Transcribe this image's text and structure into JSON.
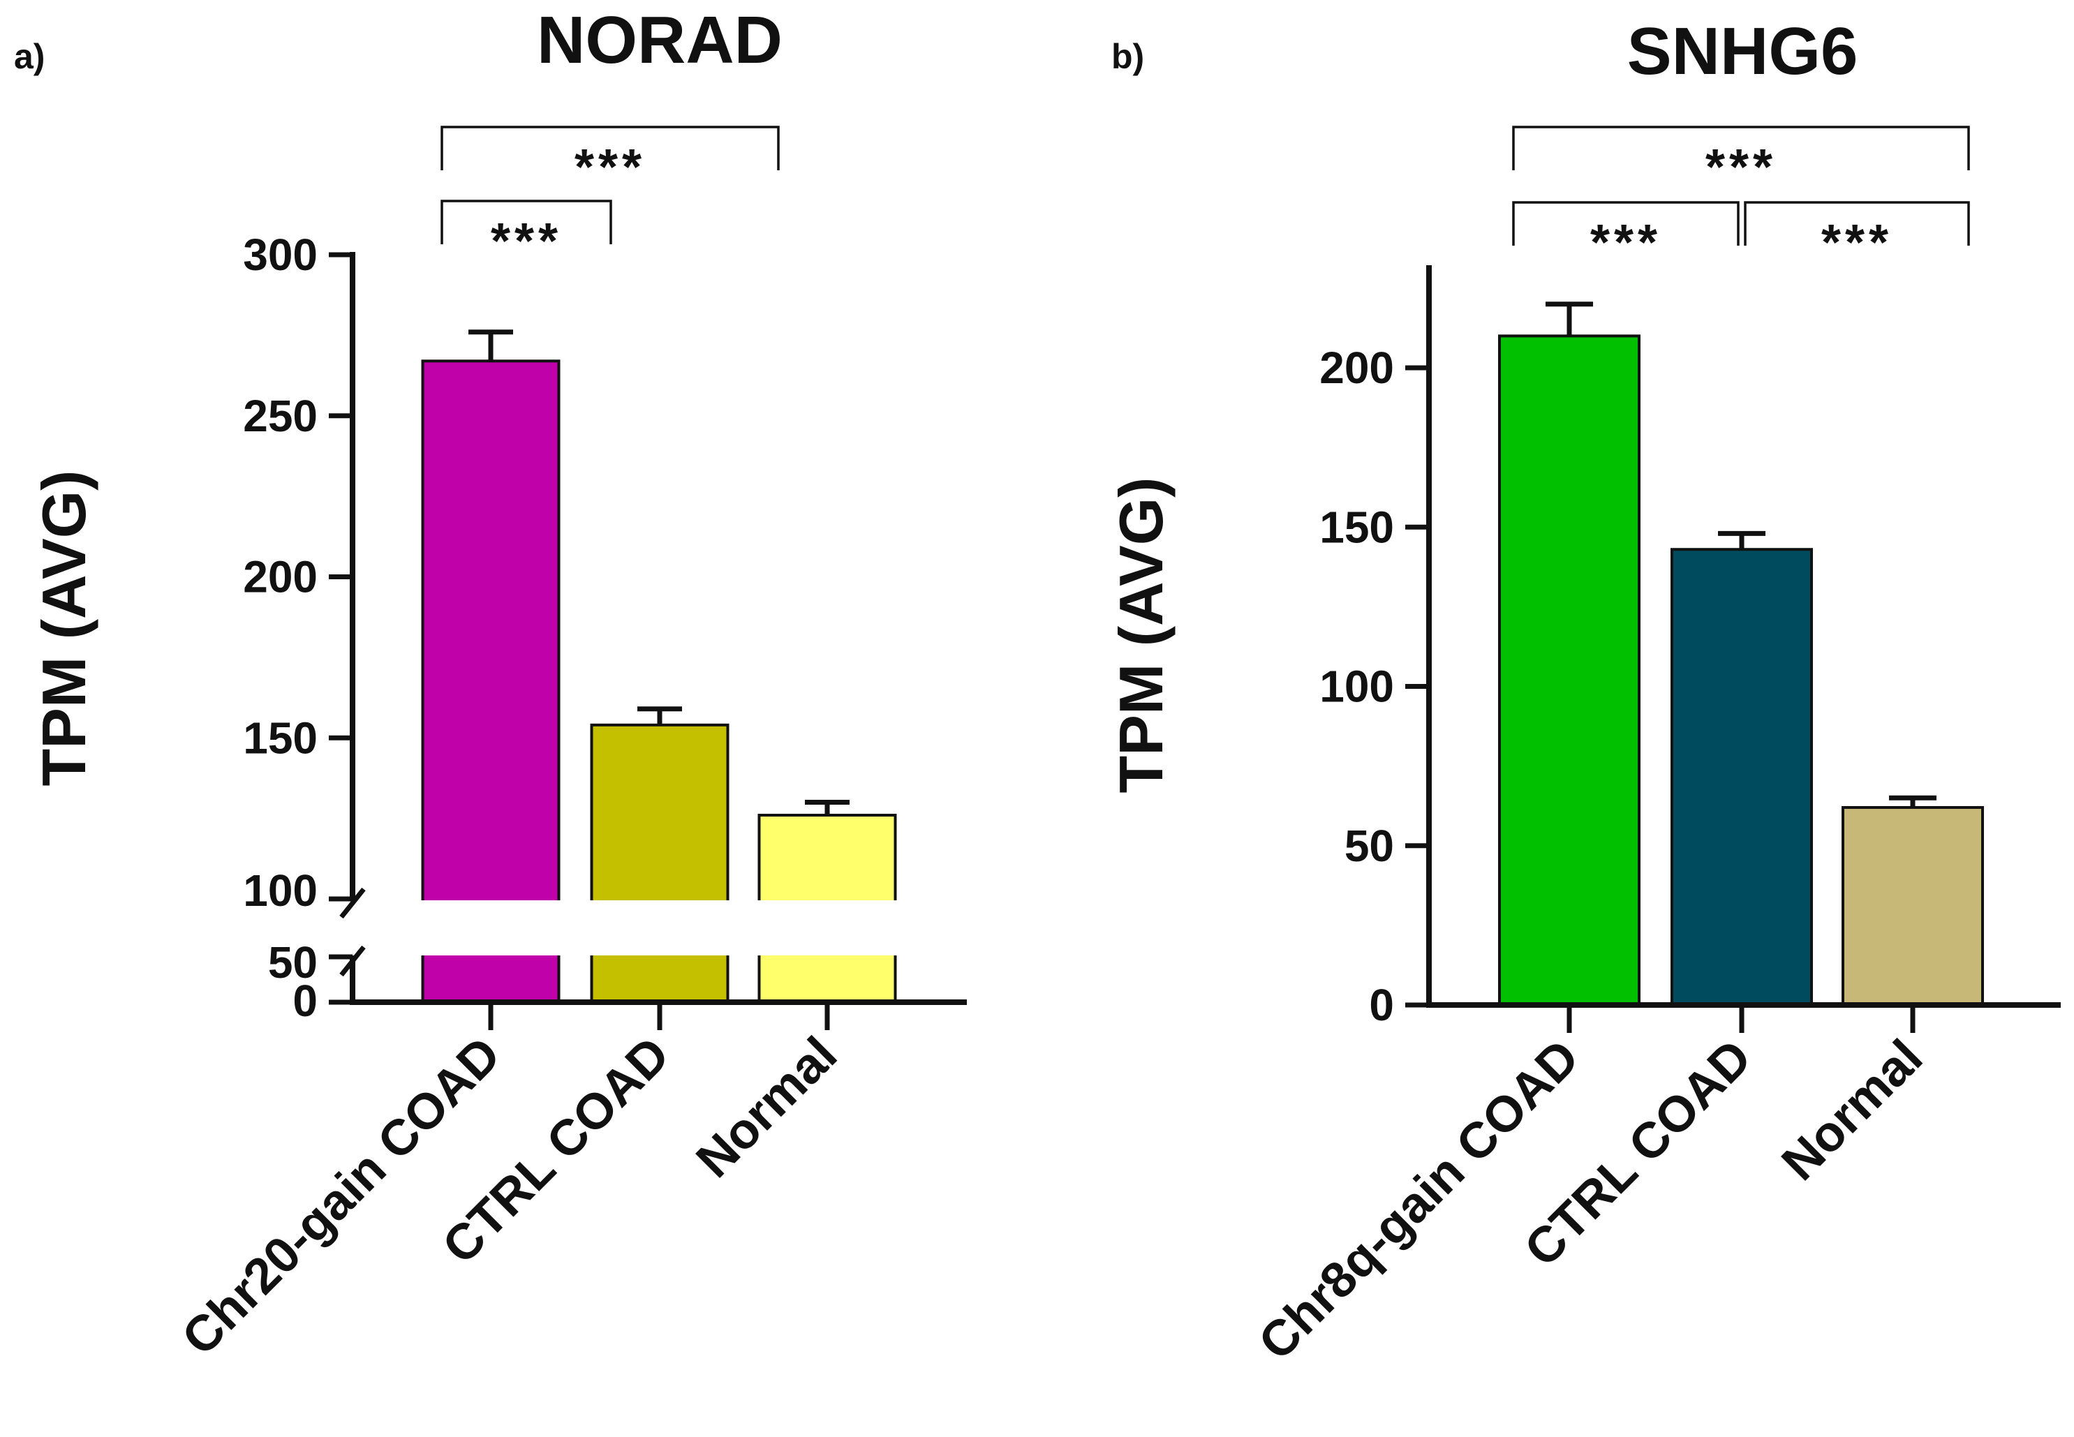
{
  "chart_data": [
    {
      "type": "bar",
      "panel_label": "a)",
      "title": "NORAD",
      "ylabel": "TPM (AVG)",
      "xlabel": "",
      "categories": [
        "Chr20-gain COAD",
        "CTRL COAD",
        "Normal"
      ],
      "values": [
        267,
        154,
        126
      ],
      "errors": [
        9,
        5,
        4
      ],
      "colors": [
        "#c000a8",
        "#c4c000",
        "#ffff6c"
      ],
      "axis_break": {
        "lower": [
          0,
          50
        ],
        "upper": [
          100,
          300
        ]
      },
      "lower_ticks": [
        0,
        50
      ],
      "upper_ticks": [
        100,
        150,
        200,
        250,
        300
      ],
      "tick_labels": [
        "0",
        "50",
        "100",
        "150",
        "200",
        "250",
        "300"
      ],
      "significance": [
        {
          "from": 0,
          "to": 1,
          "label": "***"
        },
        {
          "from": 0,
          "to": 2,
          "label": "***"
        }
      ]
    },
    {
      "type": "bar",
      "panel_label": "b)",
      "title": "SNHG6",
      "ylabel": "TPM (AVG)",
      "xlabel": "",
      "categories": [
        "Chr8q-gain COAD",
        "CTRL COAD",
        "Normal"
      ],
      "values": [
        210,
        143,
        62
      ],
      "errors": [
        10,
        5,
        3
      ],
      "colors": [
        "#00c000",
        "#004b5e",
        "#c8b878"
      ],
      "ylim": [
        0,
        230
      ],
      "ticks": [
        0,
        50,
        100,
        150,
        200
      ],
      "tick_labels": [
        "0",
        "50",
        "100",
        "150",
        "200"
      ],
      "significance": [
        {
          "from": 0,
          "to": 1,
          "label": "***"
        },
        {
          "from": 1,
          "to": 2,
          "label": "***"
        },
        {
          "from": 0,
          "to": 2,
          "label": "***"
        }
      ]
    }
  ]
}
